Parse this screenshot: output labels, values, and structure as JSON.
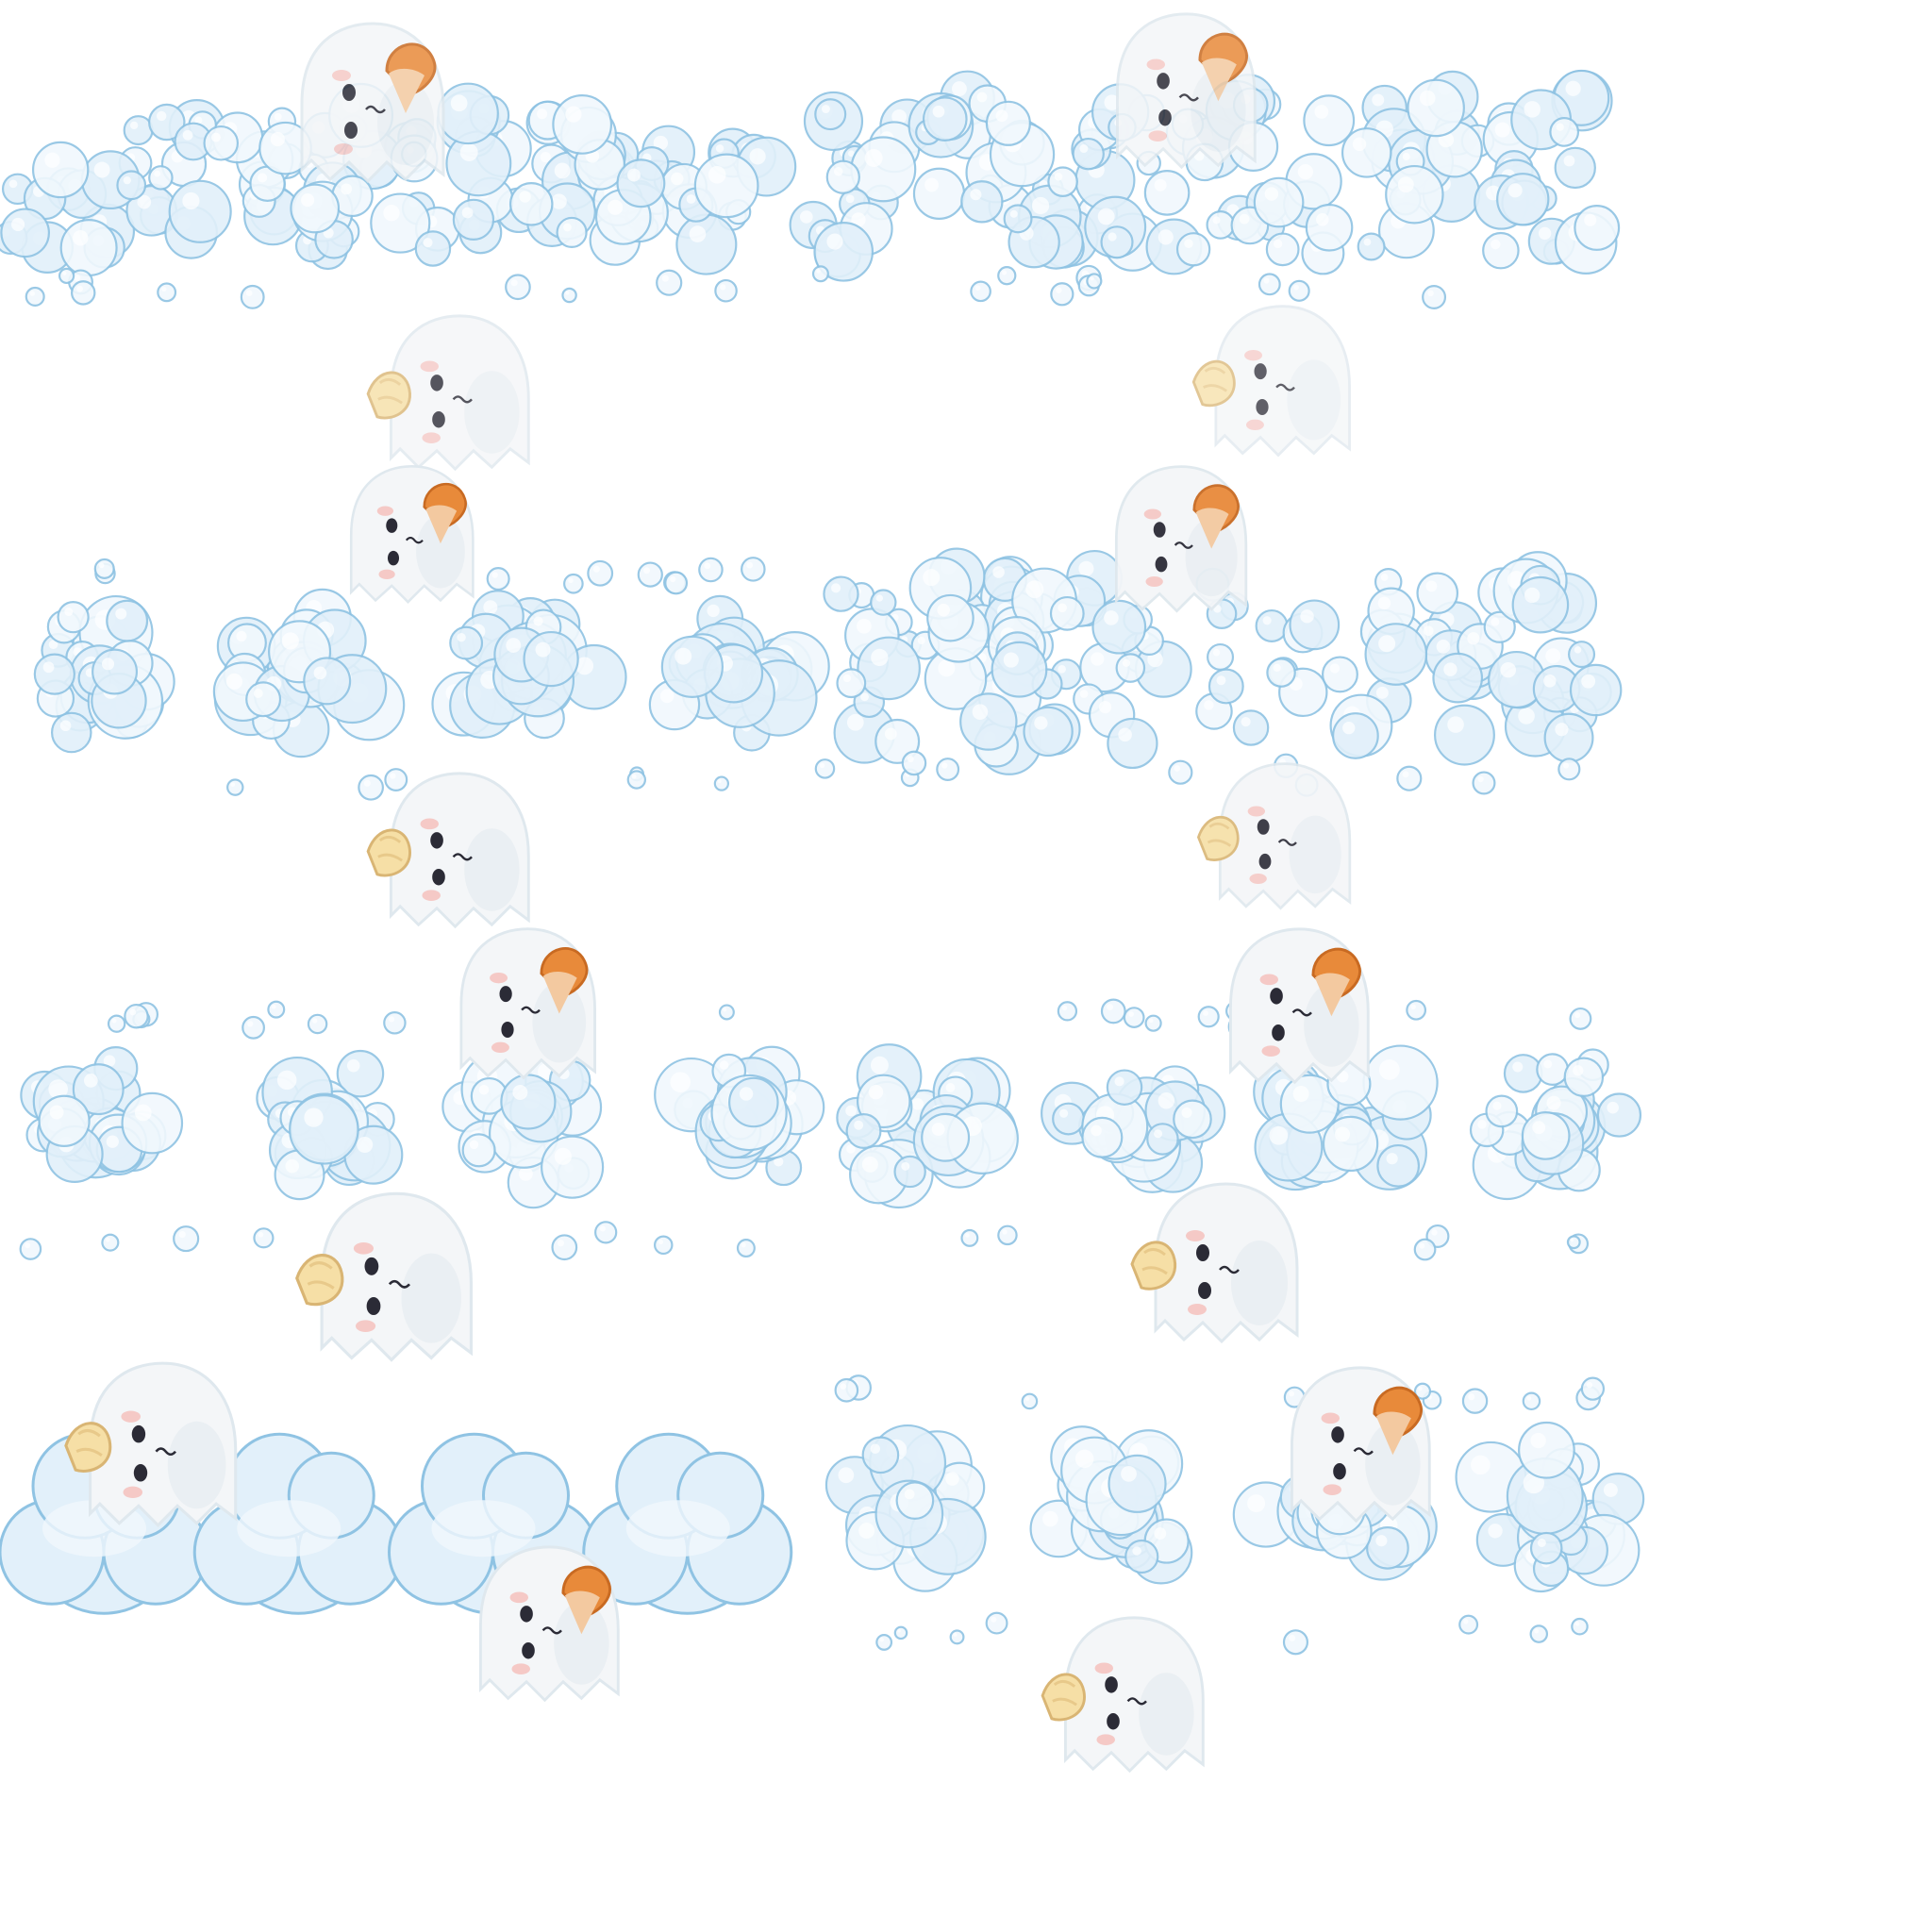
{
  "sheet": {
    "columns": 2,
    "rows": 4,
    "frame_count": 8,
    "background_color": "#ffffff"
  },
  "palette": {
    "cloud_fill": "#e2f0fa",
    "cloud_fill_light": "#f1f8fd",
    "cloud_stroke": "#8fc3e3",
    "cloud_highlight": "#ffffff",
    "ghost_body": "#f4f6f8",
    "ghost_shade": "#dfe8ee",
    "ghost_eye": "#2b2b36",
    "ghost_blush": "#f5b6b0",
    "ice_cream_orange": "#e88a3a",
    "ice_cream_cream": "#f6dfa6"
  },
  "frames": [
    {
      "id": 1,
      "cloud_style": "dense-bubbles",
      "ghost_top": "ghost-with-orange-cone",
      "ghost_bottom": "ghost-with-cream-cone"
    },
    {
      "id": 2,
      "cloud_style": "dense-bubbles",
      "ghost_top": "ghost-with-orange-cone",
      "ghost_bottom": "ghost-with-cream-cone"
    },
    {
      "id": 3,
      "cloud_style": "puff-clusters",
      "ghost_top": "ghost-with-orange-cone",
      "ghost_bottom": "ghost-with-cream-cone"
    },
    {
      "id": 4,
      "cloud_style": "dense-bubbles",
      "ghost_top": "ghost-with-orange-cone",
      "ghost_bottom": "ghost-with-cream-cone"
    },
    {
      "id": 5,
      "cloud_style": "puff-clusters",
      "ghost_top": "ghost-with-orange-cone",
      "ghost_bottom": "ghost-with-cream-cone"
    },
    {
      "id": 6,
      "cloud_style": "puff-clusters",
      "ghost_top": "ghost-with-orange-cone",
      "ghost_bottom": "ghost-with-cream-cone"
    },
    {
      "id": 7,
      "cloud_style": "solid-puffs",
      "ghost_top": "ghost-with-cream-cone",
      "ghost_bottom": "ghost-with-orange-cone"
    },
    {
      "id": 8,
      "cloud_style": "puff-clusters",
      "ghost_top": "ghost-with-orange-cone",
      "ghost_bottom": "ghost-with-cream-cone"
    }
  ]
}
